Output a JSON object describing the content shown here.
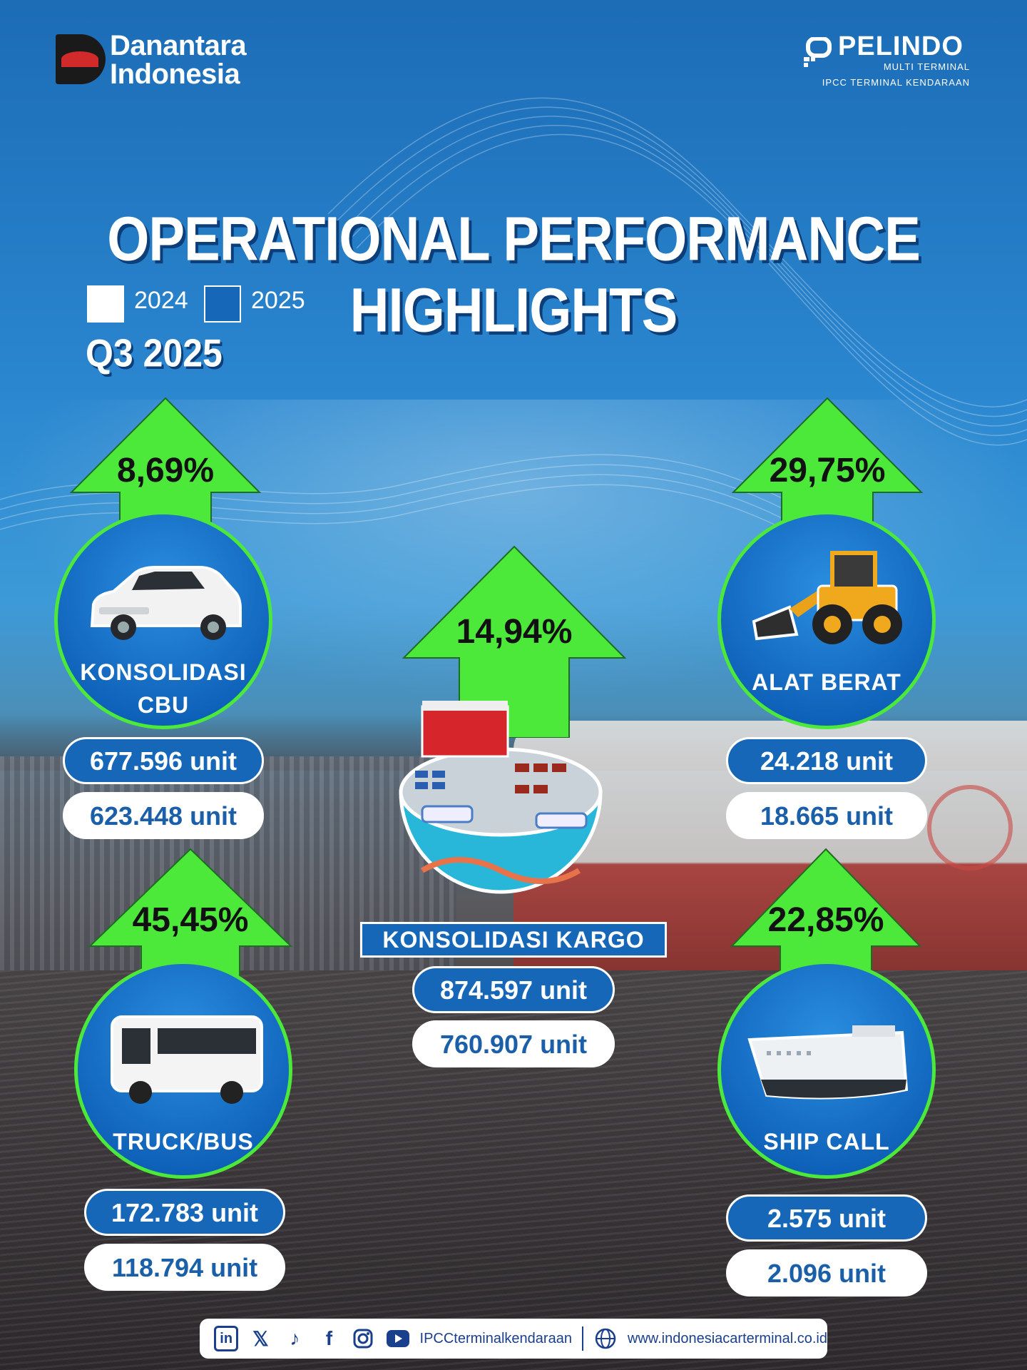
{
  "header": {
    "danantara_line1": "Danantara",
    "danantara_line2": "Indonesia",
    "pelindo_name": "PELINDO",
    "pelindo_sub1": "MULTI TERMINAL",
    "pelindo_sub2": "IPCC TERMINAL KENDARAAN"
  },
  "title": "OPERATIONAL PERFORMANCE HIGHLIGHTS",
  "legend": [
    {
      "label": "2024",
      "color": "#ffffff"
    },
    {
      "label": "2025",
      "color": "#1667b8"
    }
  ],
  "period": "Q3 2025",
  "metrics": {
    "cbu": {
      "label_line1": "KONSOLIDASI",
      "label_line2": "CBU",
      "growth": "8,69%",
      "value_2025": "677.596 unit",
      "value_2024": "623.448 unit",
      "icon": "car-icon"
    },
    "alat_berat": {
      "label": "ALAT BERAT",
      "growth": "29,75%",
      "value_2025": "24.218 unit",
      "value_2024": "18.665 unit",
      "icon": "wheel-loader-icon"
    },
    "kargo": {
      "label": "KONSOLIDASI KARGO",
      "growth": "14,94%",
      "value_2025": "874.597 unit",
      "value_2024": "760.907 unit",
      "icon": "terminal-yard-icon"
    },
    "truck_bus": {
      "label": "TRUCK/BUS",
      "growth": "45,45%",
      "value_2025": "172.783 unit",
      "value_2024": "118.794 unit",
      "icon": "bus-icon"
    },
    "ship_call": {
      "label": "SHIP CALL",
      "growth": "22,85%",
      "value_2025": "2.575 unit",
      "value_2024": "2.096 unit",
      "icon": "car-carrier-ship-icon"
    }
  },
  "footer": {
    "social_handle": "IPCCterminalkendaraan",
    "website": "www.indonesiacarterminal.co.id",
    "icons": [
      "linkedin-icon",
      "x-icon",
      "tiktok-icon",
      "facebook-icon",
      "instagram-icon",
      "youtube-icon",
      "globe-icon"
    ]
  },
  "colors": {
    "arrow_green": "#4ce83a",
    "pill_blue": "#1667b8",
    "background_blue": "#1c6cb6"
  }
}
